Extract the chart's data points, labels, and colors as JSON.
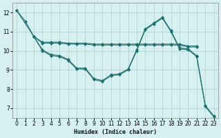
{
  "xlabel": "Humidex (Indice chaleur)",
  "ylabel": "",
  "background_color": "#d6f0f0",
  "grid_color": "#b8d8d8",
  "line_color": "#1a7070",
  "xlim": [
    -0.5,
    23.5
  ],
  "ylim": [
    6.5,
    12.5
  ],
  "yticks": [
    7,
    8,
    9,
    10,
    11,
    12
  ],
  "xticks": [
    0,
    1,
    2,
    3,
    4,
    5,
    6,
    7,
    8,
    9,
    10,
    11,
    12,
    13,
    14,
    15,
    16,
    17,
    18,
    19,
    20,
    21,
    22,
    23
  ],
  "series": [
    {
      "x": [
        0,
        1,
        2,
        3,
        4,
        5,
        6,
        7,
        8,
        9,
        10,
        11,
        12,
        13,
        14,
        15,
        16,
        17,
        18,
        19,
        20,
        21,
        22,
        23
      ],
      "y": [
        12.1,
        11.55,
        10.75,
        10.05,
        9.8,
        9.75,
        9.55,
        9.1,
        9.1,
        8.55,
        8.45,
        8.75,
        8.8,
        9.05,
        10.05,
        11.15,
        11.45,
        11.75,
        11.05,
        10.15,
        10.1,
        9.75,
        7.15,
        6.6
      ]
    },
    {
      "x": [
        0,
        2,
        3,
        4,
        5,
        6,
        7,
        8,
        9,
        10,
        11,
        12,
        13,
        14,
        15,
        16,
        17,
        18,
        19,
        20,
        21,
        22,
        23
      ],
      "y": [
        12.1,
        10.75,
        10.0,
        9.75,
        9.7,
        9.5,
        9.05,
        9.05,
        8.5,
        8.4,
        8.7,
        8.75,
        9.0,
        10.0,
        11.1,
        11.4,
        11.7,
        11.0,
        10.1,
        10.05,
        9.7,
        7.1,
        6.55
      ]
    },
    {
      "x": [
        2,
        3,
        4,
        5,
        6,
        7,
        8,
        9,
        10,
        11,
        12,
        13,
        14,
        15,
        16,
        17,
        18,
        19,
        20,
        21
      ],
      "y": [
        10.75,
        10.4,
        10.4,
        10.4,
        10.35,
        10.35,
        10.35,
        10.3,
        10.3,
        10.3,
        10.3,
        10.3,
        10.3,
        10.3,
        10.3,
        10.3,
        10.3,
        10.3,
        10.2,
        10.2
      ]
    },
    {
      "x": [
        2,
        3,
        4,
        5,
        6,
        7,
        8,
        9,
        10,
        11,
        12,
        13,
        14,
        15,
        16,
        17,
        18,
        19,
        20,
        21
      ],
      "y": [
        10.75,
        10.45,
        10.45,
        10.45,
        10.4,
        10.4,
        10.4,
        10.35,
        10.35,
        10.35,
        10.35,
        10.35,
        10.35,
        10.35,
        10.35,
        10.35,
        10.35,
        10.35,
        10.25,
        10.25
      ]
    }
  ]
}
